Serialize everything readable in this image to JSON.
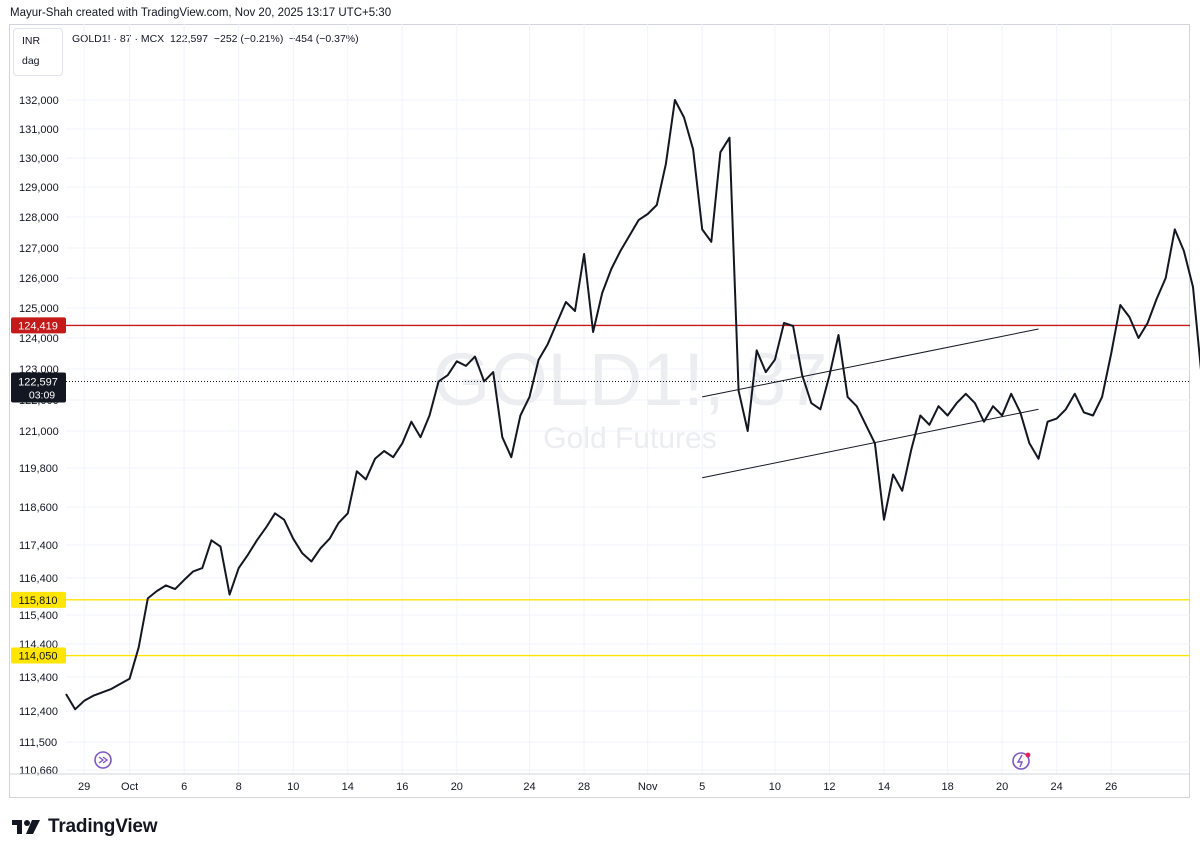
{
  "header": {
    "credit": "Mayur-Shah created with TradingView.com, Nov 20, 2025 13:17 UTC+5:30"
  },
  "currency": {
    "unit": "INR",
    "interval": "dag"
  },
  "symbol": {
    "name": "GOLD1! · 87 · MCX",
    "last": "122,597",
    "change": "−252 (−0.21%)",
    "change2": "−454 (−0.37%)"
  },
  "watermark": {
    "main": "GOLD1!, 87",
    "sub": "Gold Futures"
  },
  "footer": {
    "brand": "TradingView"
  },
  "colors": {
    "line": "#131722",
    "red_level": "#c41a1a",
    "yellow_level": "#ffe500",
    "grid": "#f0f3fa",
    "axis_text": "#131722",
    "watermark": "#ebedf1",
    "last_label_bg": "#131722",
    "icon_purple": "#7e57c2",
    "icon_pink": "#e91e63"
  },
  "chart_data": {
    "type": "line",
    "y_ticks": [
      110660,
      111500,
      112400,
      113400,
      114400,
      115400,
      116400,
      117400,
      118600,
      119800,
      121000,
      122000,
      123000,
      124000,
      125000,
      126000,
      127000,
      128000,
      129000,
      130000,
      131000,
      132000
    ],
    "y_tick_labels": [
      "110,660",
      "111,500",
      "112,400",
      "113,400",
      "114,400",
      "115,400",
      "116,400",
      "117,400",
      "118,600",
      "119,800",
      "121,000",
      "122,000",
      "123,000",
      "124,000",
      "125,000",
      "126,000",
      "127,000",
      "128,000",
      "129,000",
      "130,000",
      "131,000",
      "132,000"
    ],
    "x_tick_labels": [
      "29",
      "Oct",
      "6",
      "8",
      "10",
      "14",
      "16",
      "20",
      "24",
      "28",
      "Nov",
      "5",
      "10",
      "12",
      "14",
      "18",
      "20",
      "24",
      "26"
    ],
    "x_tick_index": [
      2,
      7,
      13,
      19,
      25,
      31,
      37,
      43,
      51,
      57,
      64,
      70,
      78,
      84,
      90,
      97,
      103,
      109,
      115
    ],
    "x_max_index": 124,
    "series": [
      {
        "values": [
          112900,
          112450,
          112700,
          112850,
          112950,
          113050,
          113200,
          113350,
          114300,
          115850,
          116050,
          116200,
          116100,
          116350,
          116600,
          116700,
          117550,
          117350,
          115950,
          116700,
          117100,
          117550,
          117950,
          118400,
          118200,
          117600,
          117150,
          116900,
          117300,
          117600,
          118100,
          118400,
          119700,
          119450,
          120100,
          120350,
          120150,
          120600,
          121300,
          120800,
          121500,
          122600,
          122800,
          123250,
          123100,
          123400,
          122600,
          122900,
          120800,
          120150,
          121500,
          122100,
          123300,
          123800,
          124500,
          125200,
          124900,
          126800,
          124200,
          125500,
          126300,
          126900,
          127400,
          127900,
          128100,
          128400,
          129800,
          132000,
          131400,
          130300,
          127600,
          127200,
          130200,
          130700,
          122300,
          121000,
          123600,
          122900,
          123300,
          124500,
          124400,
          122800,
          121900,
          121700,
          122800,
          124100,
          122100,
          121800,
          121200,
          120600,
          118200,
          119600,
          119100,
          120400,
          121500,
          121200,
          121800,
          121500,
          121900,
          122200,
          121900,
          121300,
          121800,
          121500,
          122200,
          121600,
          120600,
          120100,
          121300,
          121400,
          121700,
          122200,
          121600,
          121500,
          122100,
          123500,
          125100,
          124700,
          124000,
          124500,
          125300,
          126000,
          127600,
          126900,
          125700,
          122600,
          124000,
          123000,
          122800,
          122100,
          121300,
          122700,
          123400,
          124200,
          123100,
          123000,
          122650
        ]
      }
    ],
    "levels": [
      {
        "value": 124419,
        "label": "124,419",
        "color": "#c41a1a"
      },
      {
        "value": 115810,
        "label": "115,810",
        "color": "#ffe500"
      },
      {
        "value": 114050,
        "label": "114,050",
        "color": "#ffe500"
      }
    ],
    "last_value_label": {
      "value": "122,597",
      "countdown": "03:09",
      "price": 122597
    },
    "trendlines": [
      {
        "x1_index": 70,
        "y1": 122100,
        "x2_index": 107,
        "y2": 124300
      },
      {
        "x1_index": 70,
        "y1": 119500,
        "x2_index": 107,
        "y2": 121700
      }
    ],
    "grid": true
  }
}
